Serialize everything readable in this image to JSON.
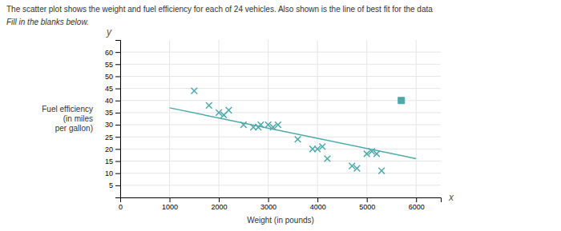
{
  "chart_data": {
    "type": "scatter",
    "title": "The scatter plot shows the weight and fuel efficiency for each of 24 vehicles. Also shown is the line of best fit for the data",
    "subtitle": "Fill in the blanks below.",
    "xlabel": "Weight (in pounds)",
    "ylabel": "Fuel efficiency\n(in miles\nper gallon)",
    "annotations": [
      "y",
      "x"
    ],
    "xlim": [
      0,
      6500
    ],
    "ylim": [
      0,
      65
    ],
    "xticks": [
      0,
      1000,
      2000,
      3000,
      4000,
      5000,
      6000
    ],
    "yticks": [
      5,
      10,
      15,
      20,
      25,
      30,
      35,
      40,
      45,
      50,
      55,
      60
    ],
    "grid": true,
    "series": [
      {
        "type": "scatter",
        "marker": "x",
        "color": "#4DA8A8",
        "x": [
          1500,
          1800,
          2000,
          2100,
          2200,
          2500,
          2700,
          2800,
          2850,
          3000,
          3100,
          3200,
          3600,
          3900,
          4000,
          4100,
          4200,
          4700,
          4800,
          5000,
          5100,
          5200,
          5300
        ],
        "values": [
          44,
          38,
          35,
          34,
          36,
          30,
          29,
          29,
          30,
          30,
          29,
          30,
          24,
          20,
          20,
          21,
          16,
          13,
          12,
          18,
          19,
          18,
          11
        ]
      },
      {
        "type": "scatter",
        "marker": "square",
        "color": "#4DA8A8",
        "x": [
          5700
        ],
        "values": [
          40
        ]
      },
      {
        "type": "line",
        "color": "#4DA8A8",
        "x": [
          1000,
          6000
        ],
        "values": [
          37,
          16
        ]
      }
    ]
  }
}
